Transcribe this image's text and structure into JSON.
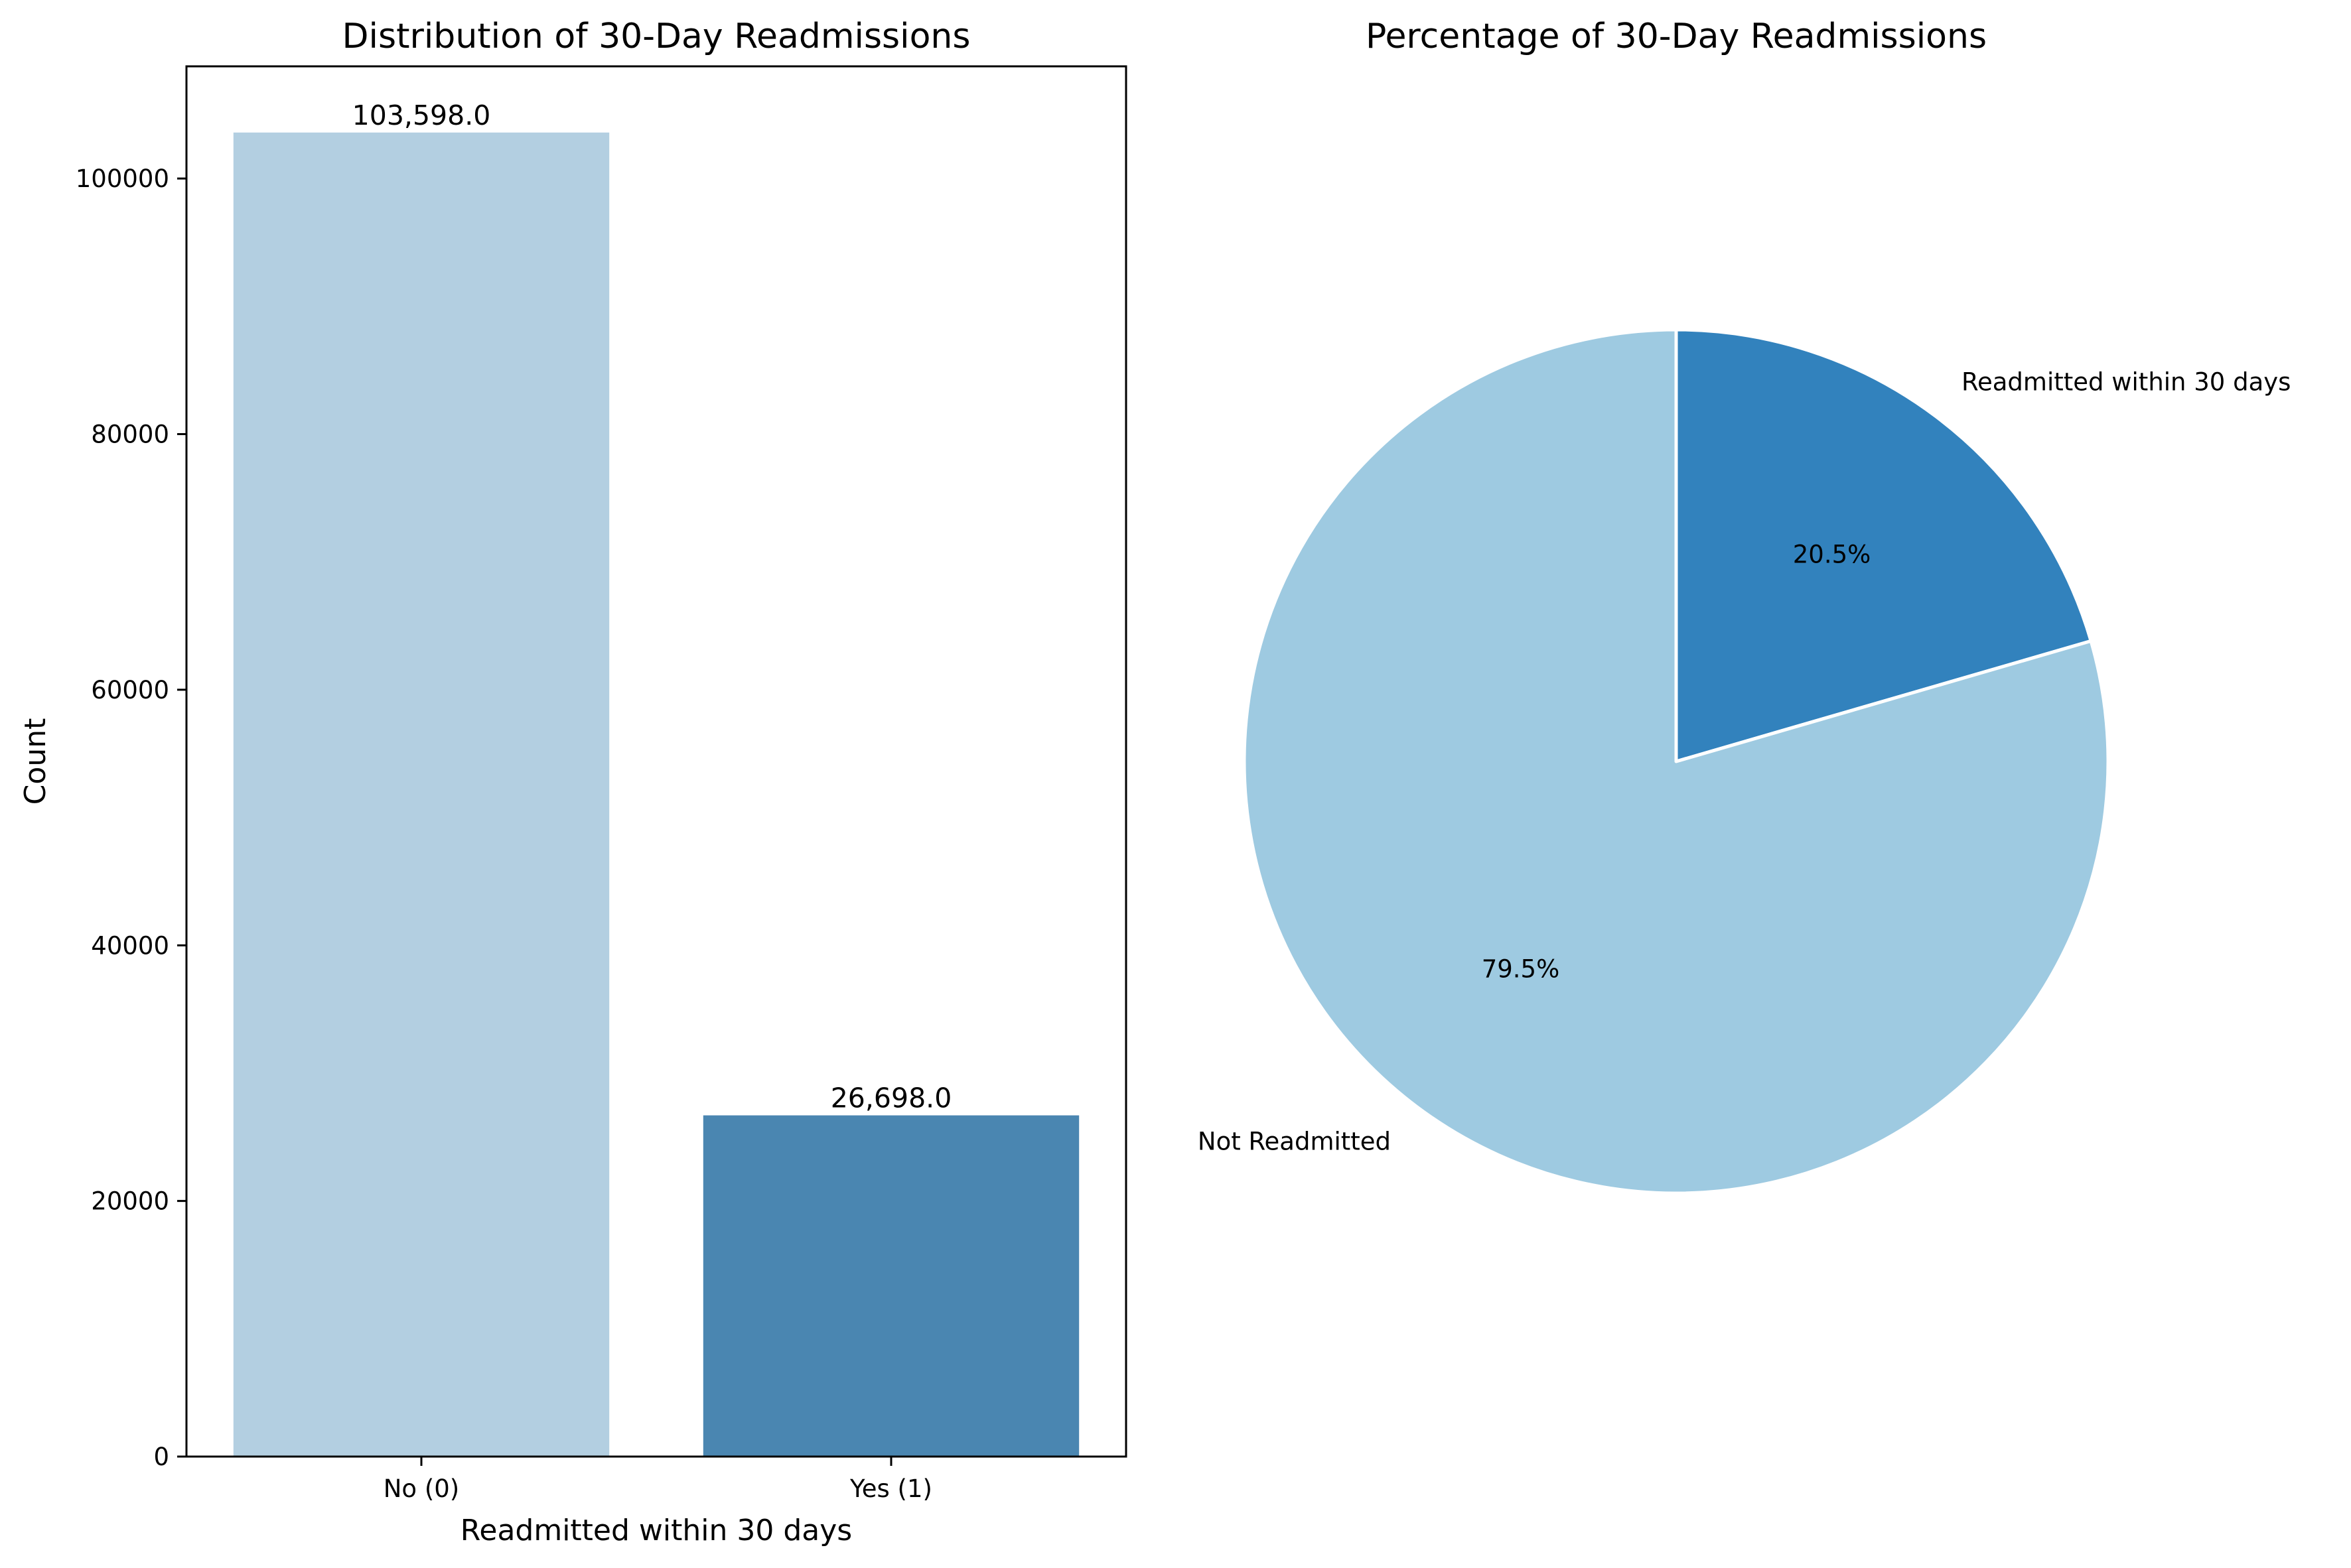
{
  "chart_data": [
    {
      "type": "bar",
      "title": "Distribution of 30-Day Readmissions",
      "xlabel": "Readmitted within 30 days",
      "ylabel": "Count",
      "categories": [
        "No (0)",
        "Yes (1)"
      ],
      "values": [
        103598,
        26698
      ],
      "data_labels": [
        "103,598.0",
        "26,698.0"
      ],
      "colors": [
        "#b3cfe1",
        "#4a86b1"
      ],
      "ylim": [
        0,
        108778
      ],
      "yticks": [
        0,
        20000,
        40000,
        60000,
        80000,
        100000
      ],
      "ytick_labels": [
        "0",
        "20000",
        "40000",
        "60000",
        "80000",
        "100000"
      ],
      "grid": false,
      "legend": "none"
    },
    {
      "type": "pie",
      "title": "Percentage of 30-Day Readmissions",
      "start_angle_deg": 90,
      "direction": "clockwise",
      "slices": [
        {
          "label": "Readmitted within 30 days",
          "value": 20.5,
          "pct_label": "20.5%",
          "color": "#3282bd"
        },
        {
          "label": "Not Readmitted",
          "value": 79.5,
          "pct_label": "79.5%",
          "color": "#9ecae1"
        }
      ],
      "edge_color": "#ffffff",
      "legend": "none"
    }
  ]
}
